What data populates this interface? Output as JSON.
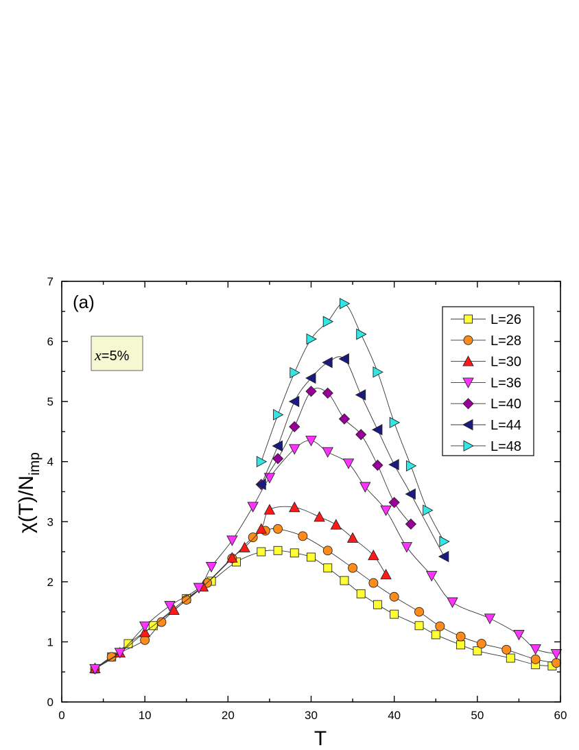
{
  "chart_data": {
    "type": "scatter",
    "panel_label": "(a)",
    "inset": {
      "symbol": "x",
      "text": "=5%"
    },
    "xlabel": "T",
    "ylabel_main": "χ(T)/N",
    "ylabel_sub": "imp",
    "xlim": [
      0,
      60
    ],
    "ylim": [
      0,
      7
    ],
    "x_ticks": [
      "0",
      "10",
      "20",
      "30",
      "40",
      "50",
      "60"
    ],
    "y_ticks": [
      "0",
      "1",
      "2",
      "3",
      "4",
      "5",
      "6",
      "7"
    ],
    "legend_position": "top-right",
    "series": [
      {
        "name": "L=26",
        "marker": "square",
        "color": "#ffff33",
        "x": [
          4,
          6,
          8,
          11,
          15,
          18,
          21,
          24,
          26,
          28,
          30,
          32,
          34,
          36,
          38,
          40,
          43,
          45,
          48,
          50,
          54,
          57,
          59
        ],
        "y": [
          0.55,
          0.75,
          0.97,
          1.27,
          1.72,
          2.01,
          2.33,
          2.5,
          2.52,
          2.48,
          2.41,
          2.23,
          2.02,
          1.8,
          1.62,
          1.46,
          1.27,
          1.12,
          0.95,
          0.85,
          0.73,
          0.62,
          0.6
        ]
      },
      {
        "name": "L=28",
        "marker": "circle",
        "color": "#ff8c1a",
        "x": [
          4,
          6,
          10,
          12,
          15,
          17.5,
          20.5,
          23,
          24.5,
          26,
          29,
          32,
          35,
          37.5,
          40,
          43,
          45.5,
          48,
          50.5,
          53.5,
          57,
          59.5
        ],
        "y": [
          0.55,
          0.75,
          1.03,
          1.33,
          1.7,
          1.98,
          2.39,
          2.74,
          2.85,
          2.88,
          2.76,
          2.52,
          2.23,
          1.98,
          1.75,
          1.5,
          1.26,
          1.09,
          0.97,
          0.87,
          0.71,
          0.65
        ]
      },
      {
        "name": "L=30",
        "marker": "triangle-up",
        "color": "#ff1a1a",
        "x": [
          4,
          7,
          10,
          13.5,
          17,
          20.5,
          22,
          24,
          25,
          28,
          31,
          33,
          35,
          37.5,
          39
        ],
        "y": [
          0.56,
          0.82,
          1.16,
          1.53,
          1.92,
          2.4,
          2.57,
          2.88,
          3.2,
          3.24,
          3.08,
          2.95,
          2.73,
          2.44,
          2.12
        ]
      },
      {
        "name": "L=36",
        "marker": "triangle-down",
        "color": "#ff33ff",
        "x": [
          4,
          7,
          10,
          13,
          16.5,
          18,
          20.5,
          23,
          25,
          28,
          30,
          32,
          34.5,
          36.5,
          39,
          41.5,
          44.5,
          47,
          51.5,
          55,
          57,
          59.5
        ],
        "y": [
          0.55,
          0.82,
          1.26,
          1.6,
          1.9,
          2.25,
          2.69,
          3.25,
          3.73,
          4.21,
          4.35,
          4.16,
          3.97,
          3.58,
          3.19,
          2.58,
          2.1,
          1.66,
          1.39,
          1.12,
          0.88,
          0.8
        ]
      },
      {
        "name": "L=40",
        "marker": "diamond",
        "color": "#990099",
        "x": [
          24,
          26,
          28,
          30,
          32,
          34,
          36,
          38,
          40,
          42
        ],
        "y": [
          3.62,
          4.05,
          4.58,
          5.17,
          5.14,
          4.71,
          4.45,
          3.94,
          3.32,
          2.96
        ]
      },
      {
        "name": "L=44",
        "marker": "triangle-left",
        "color": "#1a1a80",
        "x": [
          24,
          26,
          28,
          30,
          32,
          34,
          36,
          38,
          40,
          42,
          46
        ],
        "y": [
          3.62,
          4.26,
          5,
          5.39,
          5.65,
          5.71,
          5.11,
          4.53,
          3.95,
          3.46,
          2.42
        ]
      },
      {
        "name": "L=48",
        "marker": "triangle-right",
        "color": "#33e6e6",
        "x": [
          24,
          26,
          28,
          30,
          32,
          34,
          36,
          38,
          40,
          42,
          44,
          46
        ],
        "y": [
          4,
          4.78,
          5.48,
          6.04,
          6.33,
          6.63,
          6.12,
          5.49,
          4.65,
          3.93,
          3.19,
          2.67
        ]
      }
    ]
  }
}
